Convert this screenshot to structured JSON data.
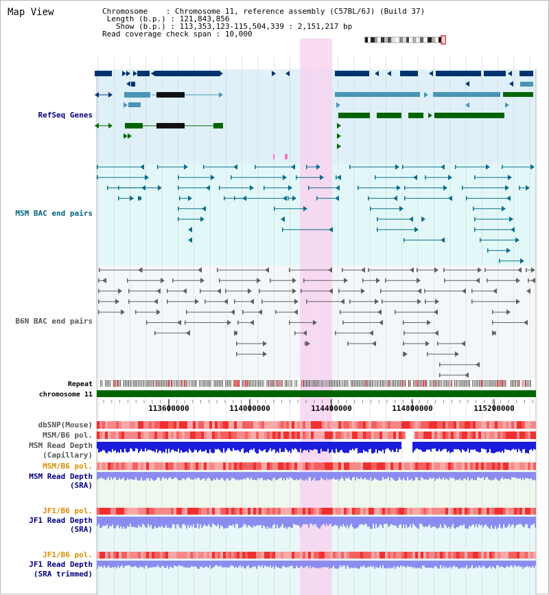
{
  "app": {
    "title": "Map View"
  },
  "info": {
    "chromosome_label": "Chromosome",
    "chromosome_value": "Chromosome 11, reference assembly (C57BL/6J) (Build 37)",
    "length_label": "Length (b.p.)",
    "length_value": "121,843,856",
    "show_label": "Show (b.p.)",
    "show_value": "113,353,123-115,504,339 : 2,151,217 bp",
    "coverage_label": "Read coverage check span",
    "coverage_value": "10,000"
  },
  "tracks": {
    "refseq": "RefSeq Genes",
    "msm_bac": "MSM BAC end pairs",
    "b6n_bac": "B6N BAC end pairs",
    "repeat": "Repeat",
    "chromosome": "chromosome 11",
    "dbsnp": "dbSNP(Mouse)",
    "msm_b6_pol_1": "MSM/B6 pol.",
    "msm_depth_cap_1": "MSM Read Depth",
    "msm_depth_cap_2": "(Capillary)",
    "msm_b6_pol_2": "MSM/B6 pol.",
    "msm_depth_sra_1": "MSM Read Depth",
    "msm_depth_sra_2": "(SRA)",
    "jf1_b6_pol_1": "JF1/B6 pol.",
    "jf1_depth_sra_1": "JF1 Read Depth",
    "jf1_depth_sra_2": "(SRA)",
    "jf1_b6_pol_2": "JF1/B6 pol.",
    "jf1_depth_trim_1": "JF1 Read Depth",
    "jf1_depth_trim_2": "(SRA trimmed)"
  },
  "ruler": {
    "ticks": [
      "113600000",
      "114000000",
      "114400000",
      "114800000",
      "115200000"
    ]
  },
  "colors": {
    "highlight": "#f7d4f0",
    "refseq_bg": "#dff0f8",
    "msm_bg": "#e2f8f8",
    "b6n_bg": "#f4f7fa",
    "refseq_dark": "#00336e",
    "refseq_mid": "#4a94b4",
    "refseq_green": "#006400",
    "msm_bac": "#0a6e8c",
    "b6n_bac": "#606060",
    "chromosome": "#006400",
    "label_navy": "#00007f",
    "label_teal": "#005f80",
    "label_gray": "#555555",
    "label_orange": "#e08c00",
    "depth_blue": "#1c1cdc",
    "depth_lavender": "#8c8cf0"
  }
}
